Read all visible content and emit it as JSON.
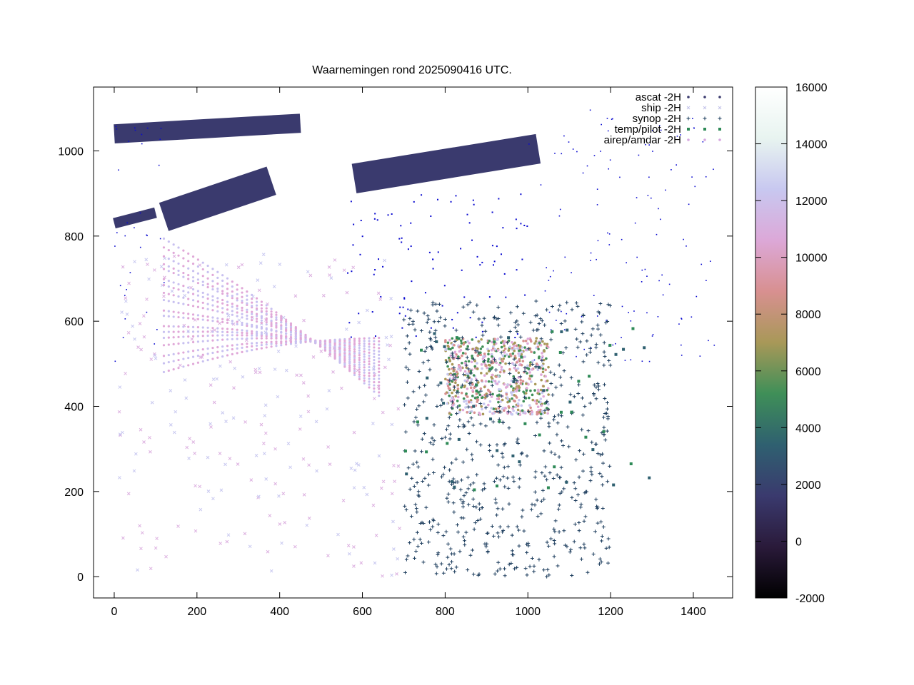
{
  "chart_data": {
    "type": "scatter",
    "title": "Waarnemingen rond 2025090416 UTC.",
    "xlabel": "",
    "ylabel": "",
    "xlim": [
      -50,
      1495
    ],
    "ylim": [
      -50,
      1150
    ],
    "x_ticks": [
      0,
      200,
      400,
      600,
      800,
      1000,
      1200,
      1400
    ],
    "y_ticks": [
      0,
      200,
      400,
      600,
      800,
      1000
    ],
    "x_tick_labels": [
      "0",
      "200",
      "400",
      "600",
      "800",
      "1000",
      "1200",
      "1400"
    ],
    "y_tick_labels": [
      "0",
      "200",
      "400",
      "600",
      "800",
      "1000"
    ],
    "grid": false,
    "legend_position": "top-right",
    "colorbar": {
      "min": -2000,
      "max": 16000,
      "ticks": [
        -2000,
        0,
        2000,
        4000,
        6000,
        8000,
        10000,
        12000,
        14000,
        16000
      ],
      "tick_labels": [
        "-2000",
        "0",
        "2000",
        "4000",
        "6000",
        "8000",
        "10000",
        "12000",
        "14000",
        "16000"
      ],
      "palette": [
        "#000000",
        "#2a1a3a",
        "#3a3a6e",
        "#2f6070",
        "#3f8f58",
        "#a89858",
        "#d89090",
        "#dca8d8",
        "#c8c8f0",
        "#e8f4f0",
        "#ffffff"
      ]
    },
    "series": [
      {
        "name": "ascat -2H",
        "marker": "dot",
        "color": "#3a3a6e"
      },
      {
        "name": "ship -2H",
        "marker": "x",
        "color": "#c0c0e8"
      },
      {
        "name": "synop -2H",
        "marker": "plus",
        "color": "#1f3f5f"
      },
      {
        "name": "temp/pilot -2H",
        "marker": "square",
        "color": "#2e8a57"
      },
      {
        "name": "airep/amdar -2H",
        "marker": "dot",
        "color": "#d6a8e0"
      }
    ],
    "regions": {
      "ascat_swaths": [
        {
          "from": [
            0,
            1040
          ],
          "to": [
            450,
            1065
          ],
          "width": 45
        },
        {
          "from": [
            580,
            935
          ],
          "to": [
            1025,
            1005
          ],
          "width": 70
        },
        {
          "from": [
            120,
            845
          ],
          "to": [
            380,
            930
          ],
          "width": 70
        },
        {
          "from": [
            0,
            830
          ],
          "to": [
            100,
            855
          ],
          "width": 25
        }
      ],
      "airep_ocean_area": {
        "x": [
          20,
          700
        ],
        "y": [
          0,
          780
        ]
      },
      "synop_land_area": {
        "x": [
          700,
          1200
        ],
        "y": [
          0,
          650
        ]
      },
      "airep_dense_area": {
        "x": [
          800,
          1050
        ],
        "y": [
          380,
          560
        ]
      }
    }
  }
}
